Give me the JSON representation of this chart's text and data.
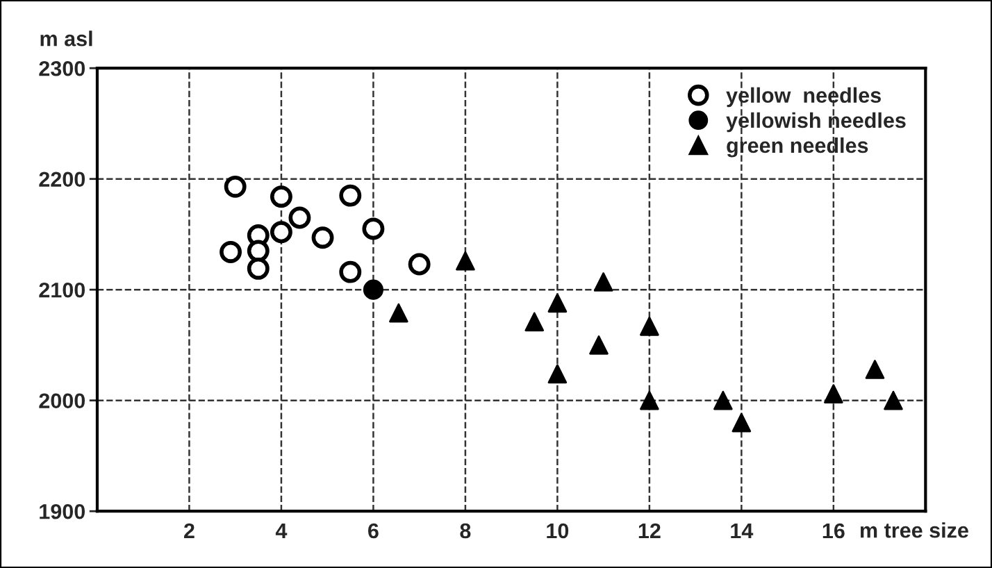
{
  "chart_data": {
    "type": "scatter",
    "xlabel": "m tree size",
    "ylabel": "m asl",
    "xlim": [
      0,
      18
    ],
    "xticks": [
      2,
      4,
      6,
      8,
      10,
      12,
      14,
      16
    ],
    "ylim": [
      1900,
      2300
    ],
    "yticks": [
      1900,
      2000,
      2100,
      2200,
      2300
    ],
    "grid": true,
    "legend": "top right",
    "series": [
      {
        "name": "yellow  needles",
        "color": "#ffffff",
        "marker": "circle",
        "x": [
          3,
          4,
          5.5,
          4.4,
          4,
          3.5,
          6,
          4.9,
          2.9,
          3.5,
          3.5,
          5.5,
          7
        ],
        "values": [
          2193,
          2184,
          2185,
          2165,
          2152,
          2149,
          2155,
          2147,
          2134,
          2135,
          2119,
          2116,
          2123
        ]
      },
      {
        "name": "yellowish needles",
        "color": "#000000",
        "marker": "circle",
        "x": [
          6
        ],
        "values": [
          2100
        ]
      },
      {
        "name": "green needles",
        "color": "#000000",
        "marker": "triangle",
        "x": [
          6.55,
          8,
          9.5,
          10,
          11,
          10.9,
          10,
          12,
          12,
          13.6,
          14,
          16,
          16.9,
          17.3
        ],
        "values": [
          2079,
          2126,
          2071,
          2088,
          2107,
          2050,
          2024,
          2067,
          2000,
          2000,
          1980,
          2006,
          2028,
          2000
        ]
      }
    ]
  }
}
